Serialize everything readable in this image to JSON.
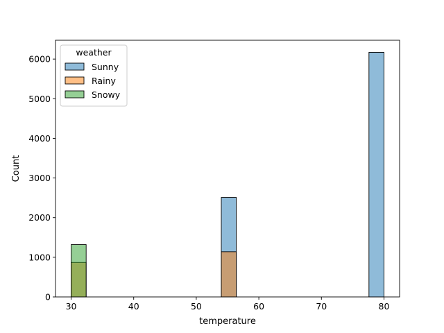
{
  "chart_data": {
    "type": "bar",
    "xlabel": "temperature",
    "ylabel": "Count",
    "xlim": [
      27.5,
      82.5
    ],
    "ylim": [
      0,
      6475
    ],
    "xticks": [
      30,
      40,
      50,
      60,
      70,
      80
    ],
    "yticks": [
      0,
      1000,
      2000,
      3000,
      4000,
      5000,
      6000
    ],
    "bin_width": 2.4,
    "legend": {
      "title": "weather",
      "position": "upper-left"
    },
    "series": [
      {
        "name": "Sunny",
        "color": "#1f77b4",
        "bins": [
          {
            "x0": 54.0,
            "count": 2510
          },
          {
            "x0": 77.6,
            "count": 6170
          }
        ]
      },
      {
        "name": "Rainy",
        "color": "#ff7f0e",
        "bins": [
          {
            "x0": 30.0,
            "count": 870
          },
          {
            "x0": 54.0,
            "count": 1140
          }
        ]
      },
      {
        "name": "Snowy",
        "color": "#2ca02c",
        "bins": [
          {
            "x0": 30.0,
            "count": 1320
          }
        ]
      }
    ]
  }
}
